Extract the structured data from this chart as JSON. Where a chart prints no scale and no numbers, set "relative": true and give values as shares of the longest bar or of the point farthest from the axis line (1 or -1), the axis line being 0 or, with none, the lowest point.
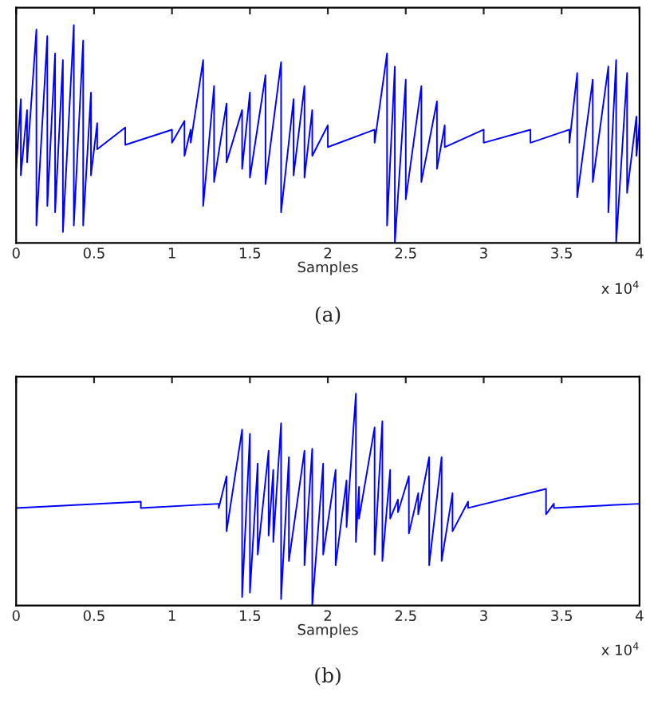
{
  "chart_data": [
    {
      "type": "line",
      "relative": true,
      "xlabel": "Samples",
      "xlim": [
        0,
        4
      ],
      "xticks": [
        0,
        0.5,
        1,
        1.5,
        2,
        2.5,
        3,
        3.5,
        4
      ],
      "tick_labels": "x",
      "annotations": [
        "x 10$^{4}$",
        "(a)"
      ],
      "series": [
        {
          "color": "#0000ff",
          "x": [
            0,
            0,
            0.03,
            0.03,
            0.07,
            0.07,
            0.13,
            0.13,
            0.2,
            0.2,
            0.25,
            0.25,
            0.3,
            0.3,
            0.37,
            0.37,
            0.43,
            0.43,
            0.48,
            0.48,
            0.52,
            0.52,
            0.7,
            0.7,
            1.0,
            1.0,
            1.08,
            1.08,
            1.12,
            1.12,
            1.2,
            1.2,
            1.27,
            1.27,
            1.35,
            1.35,
            1.45,
            1.45,
            1.5,
            1.5,
            1.6,
            1.6,
            1.7,
            1.7,
            1.78,
            1.78,
            1.85,
            1.85,
            1.9,
            1.9,
            2.0,
            2.0,
            2.3,
            2.3,
            2.38,
            2.38,
            2.43,
            2.43,
            2.5,
            2.5,
            2.6,
            2.6,
            2.7,
            2.7,
            2.75,
            2.75,
            3.0,
            3.0,
            3.3,
            3.3,
            3.55,
            3.55,
            3.6,
            3.6,
            3.7,
            3.7,
            3.8,
            3.8,
            3.85,
            3.85,
            3.92,
            3.92,
            3.98,
            3.98,
            4.0,
            4.0
          ],
          "values": [
            0.66,
            0.34,
            0.66,
            0.31,
            0.61,
            0.37,
            0.98,
            0.08,
            0.95,
            0.17,
            0.87,
            0.14,
            0.84,
            0.05,
            1.0,
            0.08,
            0.93,
            0.08,
            0.69,
            0.31,
            0.55,
            0.43,
            0.53,
            0.45,
            0.52,
            0.46,
            0.56,
            0.4,
            0.52,
            0.46,
            0.84,
            0.17,
            0.72,
            0.28,
            0.64,
            0.37,
            0.61,
            0.34,
            0.69,
            0.3,
            0.77,
            0.27,
            0.83,
            0.14,
            0.66,
            0.31,
            0.72,
            0.3,
            0.61,
            0.4,
            0.54,
            0.44,
            0.52,
            0.46,
            0.87,
            0.08,
            0.81,
            0.0,
            0.75,
            0.2,
            0.72,
            0.28,
            0.65,
            0.34,
            0.54,
            0.44,
            0.52,
            0.46,
            0.52,
            0.46,
            0.52,
            0.46,
            0.78,
            0.21,
            0.75,
            0.28,
            0.81,
            0.14,
            0.84,
            0.0,
            0.78,
            0.23,
            0.58,
            0.4,
            0.55,
            0.43
          ]
        }
      ]
    },
    {
      "type": "line",
      "relative": true,
      "xlabel": "Samples",
      "xlim": [
        0,
        4
      ],
      "xticks": [
        0,
        0.5,
        1,
        1.5,
        2,
        2.5,
        3,
        3.5,
        4
      ],
      "tick_labels": "x",
      "annotations": [
        "x 10$^{4}$",
        "(b)"
      ],
      "series": [
        {
          "color": "#0000ff",
          "x": [
            0,
            0,
            0.8,
            0.8,
            1.3,
            1.3,
            1.35,
            1.35,
            1.45,
            1.45,
            1.5,
            1.5,
            1.55,
            1.55,
            1.62,
            1.62,
            1.65,
            1.65,
            1.7,
            1.7,
            1.75,
            1.75,
            1.85,
            1.85,
            1.9,
            1.9,
            1.97,
            1.97,
            2.05,
            2.05,
            2.12,
            2.12,
            2.18,
            2.18,
            2.2,
            2.2,
            2.3,
            2.3,
            2.35,
            2.35,
            2.4,
            2.4,
            2.45,
            2.45,
            2.52,
            2.52,
            2.58,
            2.58,
            2.65,
            2.65,
            2.73,
            2.73,
            2.8,
            2.8,
            2.9,
            2.9,
            3.4,
            3.4,
            3.45,
            3.45,
            4.0,
            4.0
          ],
          "values": [
            0.48,
            0.46,
            0.49,
            0.46,
            0.48,
            0.46,
            0.61,
            0.35,
            0.83,
            0.04,
            0.81,
            0.06,
            0.67,
            0.24,
            0.73,
            0.33,
            0.64,
            0.3,
            0.86,
            0.03,
            0.7,
            0.21,
            0.73,
            0.19,
            0.74,
            0.0,
            0.67,
            0.24,
            0.64,
            0.19,
            0.59,
            0.37,
            1.0,
            0.3,
            0.56,
            0.41,
            0.84,
            0.24,
            0.87,
            0.21,
            0.64,
            0.41,
            0.5,
            0.44,
            0.61,
            0.34,
            0.53,
            0.43,
            0.7,
            0.19,
            0.7,
            0.21,
            0.53,
            0.35,
            0.49,
            0.46,
            0.55,
            0.43,
            0.48,
            0.46,
            0.48,
            0.46
          ]
        }
      ]
    }
  ]
}
